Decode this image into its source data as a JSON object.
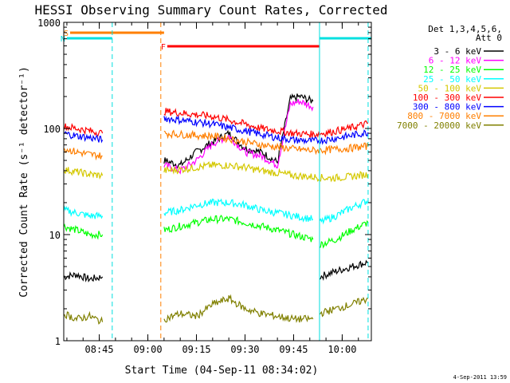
{
  "chart_data": {
    "type": "line",
    "title": "HESSI Observing Summary Count Rates, Corrected",
    "xlabel": "Start Time (04-Sep-11 08:34:02)",
    "ylabel": "Corrected Count Rate (s⁻¹ detector⁻¹)",
    "y_scale": "log",
    "ylim": [
      1,
      1000
    ],
    "xlim": [
      "08:34:02",
      "10:09:00"
    ],
    "x_ticks": [
      "08:45",
      "09:00",
      "09:15",
      "09:30",
      "09:45",
      "10:00"
    ],
    "y_ticks": [
      "1",
      "10",
      "100",
      "1000"
    ],
    "grid": false,
    "legend_title_line1": "Det 1,3,4,5,6,",
    "legend_title_line2": "Att 0",
    "legend_position": "right",
    "timestamp": "4-Sep-2011 13:59",
    "markers": {
      "S": {
        "label": "S",
        "color": "#ff7f00",
        "start": "08:36",
        "end": "09:05"
      },
      "N": {
        "label": "N",
        "color": "#00e0e0",
        "start": "08:35",
        "end": "08:49"
      },
      "F": {
        "label": "F",
        "color": "#ff0000",
        "start": "09:06",
        "end": "09:53"
      },
      "night2": {
        "label": "",
        "color": "#00e0e0",
        "start": "09:53",
        "end": "10:09"
      }
    },
    "vlines": [
      {
        "time": "08:49",
        "color": "#00e0e0",
        "style": "dashed"
      },
      {
        "time": "09:04",
        "color": "#ff7f00",
        "style": "dashed"
      },
      {
        "time": "09:53",
        "color": "#00e0e0",
        "style": "solid"
      },
      {
        "time": "10:08",
        "color": "#00e0e0",
        "style": "dashed"
      }
    ],
    "series": [
      {
        "name": "3 - 6 keV",
        "color": "#000000",
        "segments": [
          {
            "x": [
              "08:34",
              "08:38",
              "08:42",
              "08:46"
            ],
            "y": [
              4.0,
              4.2,
              3.8,
              4.0
            ]
          },
          {
            "x": [
              "09:05",
              "09:10",
              "09:15",
              "09:20",
              "09:25",
              "09:30",
              "09:35",
              "09:40",
              "09:44",
              "09:47",
              "09:51"
            ],
            "y": [
              50,
              45,
              60,
              75,
              90,
              65,
              60,
              48,
              190,
              200,
              180
            ]
          },
          {
            "x": [
              "09:53",
              "09:58",
              "10:03",
              "10:08"
            ],
            "y": [
              4.0,
              4.5,
              5.0,
              5.5
            ]
          }
        ]
      },
      {
        "name": "6 - 12 keV",
        "color": "#ff00ff",
        "segments": [
          {
            "x": [
              "09:05",
              "09:10",
              "09:15",
              "09:20",
              "09:25",
              "09:30",
              "09:35",
              "09:40",
              "09:44",
              "09:47",
              "09:51"
            ],
            "y": [
              45,
              40,
              50,
              72,
              85,
              60,
              55,
              45,
              170,
              180,
              160
            ]
          }
        ]
      },
      {
        "name": "12 - 25 keV",
        "color": "#00ff00",
        "segments": [
          {
            "x": [
              "08:34",
              "08:38",
              "08:42",
              "08:46"
            ],
            "y": [
              12,
              11,
              10,
              10
            ]
          },
          {
            "x": [
              "09:05",
              "09:10",
              "09:15",
              "09:20",
              "09:25",
              "09:30",
              "09:35",
              "09:40",
              "09:45",
              "09:51"
            ],
            "y": [
              11,
              12,
              13,
              14,
              14,
              13,
              12,
              11,
              10,
              9
            ]
          },
          {
            "x": [
              "09:53",
              "09:58",
              "10:03",
              "10:08"
            ],
            "y": [
              8,
              9,
              11,
              13
            ]
          }
        ]
      },
      {
        "name": "25 - 50 keV",
        "color": "#00ffff",
        "segments": [
          {
            "x": [
              "08:34",
              "08:38",
              "08:42",
              "08:46"
            ],
            "y": [
              17,
              16,
              15,
              15
            ]
          },
          {
            "x": [
              "09:05",
              "09:10",
              "09:15",
              "09:20",
              "09:25",
              "09:30",
              "09:35",
              "09:40",
              "09:45",
              "09:51"
            ],
            "y": [
              16,
              17,
              19,
              20,
              20,
              19,
              17,
              16,
              15,
              14
            ]
          },
          {
            "x": [
              "09:53",
              "09:58",
              "10:03",
              "10:08"
            ],
            "y": [
              13,
              15,
              18,
              21
            ]
          }
        ]
      },
      {
        "name": "50 - 100 keV",
        "color": "#d4c800",
        "segments": [
          {
            "x": [
              "08:34",
              "08:38",
              "08:42",
              "08:46"
            ],
            "y": [
              41,
              39,
              37,
              36
            ]
          },
          {
            "x": [
              "09:05",
              "09:10",
              "09:15",
              "09:20",
              "09:25",
              "09:30",
              "09:35",
              "09:40",
              "09:45",
              "09:51",
              "09:56",
              "10:02",
              "10:08"
            ],
            "y": [
              40,
              41,
              43,
              45,
              45,
              43,
              40,
              38,
              36,
              35,
              34,
              35,
              37
            ]
          }
        ]
      },
      {
        "name": "100 - 300 keV",
        "color": "#ff0000",
        "segments": [
          {
            "x": [
              "08:34",
              "08:38",
              "08:42",
              "08:46"
            ],
            "y": [
              105,
              100,
              95,
              90
            ]
          },
          {
            "x": [
              "09:05",
              "09:10",
              "09:15",
              "09:20",
              "09:25",
              "09:30",
              "09:35",
              "09:40",
              "09:45",
              "09:51",
              "09:56",
              "10:02",
              "10:08"
            ],
            "y": [
              145,
              140,
              135,
              130,
              120,
              110,
              100,
              95,
              90,
              88,
              92,
              100,
              112
            ]
          }
        ]
      },
      {
        "name": "300 - 800 keV",
        "color": "#0000ff",
        "segments": [
          {
            "x": [
              "08:34",
              "08:38",
              "08:42",
              "08:46"
            ],
            "y": [
              90,
              85,
              82,
              78
            ]
          },
          {
            "x": [
              "09:05",
              "09:10",
              "09:15",
              "09:20",
              "09:25",
              "09:30",
              "09:35",
              "09:40",
              "09:45",
              "09:51",
              "09:56",
              "10:02",
              "10:08"
            ],
            "y": [
              125,
              120,
              115,
              110,
              102,
              95,
              88,
              82,
              78,
              76,
              79,
              85,
              92
            ]
          }
        ]
      },
      {
        "name": "800 - 7000 keV",
        "color": "#ff7f00",
        "segments": [
          {
            "x": [
              "08:34",
              "08:38",
              "08:42",
              "08:46"
            ],
            "y": [
              65,
              60,
              57,
              55
            ]
          },
          {
            "x": [
              "09:05",
              "09:10",
              "09:15",
              "09:20",
              "09:25",
              "09:30",
              "09:35",
              "09:40",
              "09:45",
              "09:51",
              "09:56",
              "10:02",
              "10:08"
            ],
            "y": [
              90,
              88,
              86,
              85,
              80,
              75,
              70,
              67,
              64,
              62,
              63,
              65,
              68
            ]
          }
        ]
      },
      {
        "name": "7000 - 20000 keV",
        "color": "#808000",
        "segments": [
          {
            "x": [
              "08:34",
              "08:38",
              "08:42",
              "08:46"
            ],
            "y": [
              1.8,
              1.6,
              1.7,
              1.5
            ]
          },
          {
            "x": [
              "09:05",
              "09:10",
              "09:15",
              "09:20",
              "09:25",
              "09:30",
              "09:35",
              "09:40",
              "09:45",
              "09:51"
            ],
            "y": [
              1.6,
              1.8,
              1.7,
              2.2,
              2.5,
              2.0,
              1.8,
              1.7,
              1.6,
              1.6
            ]
          },
          {
            "x": [
              "09:53",
              "09:58",
              "10:03",
              "10:08"
            ],
            "y": [
              1.8,
              2.0,
              2.2,
              2.5
            ]
          }
        ]
      }
    ]
  }
}
